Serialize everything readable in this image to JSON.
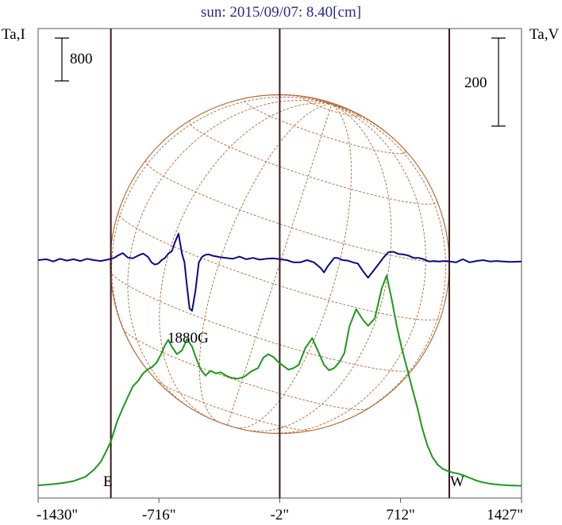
{
  "chart_data": {
    "type": "line",
    "title": "sun: 2015/09/07: 8.40[cm]",
    "left_axis_label": "Ta,I",
    "right_axis_label": "Ta,V",
    "left_scale_label": "800",
    "right_scale_label": "200",
    "x_tick_labels": [
      "-1430\"",
      "-716\"",
      "-2\"",
      "712\"",
      "1427\""
    ],
    "x_ticks": [
      -1430,
      -716,
      -2,
      712,
      1427
    ],
    "xlim": [
      -1430,
      1427
    ],
    "limb_markers": [
      {
        "label": "E",
        "x": -1000
      },
      {
        "label": "W",
        "x": 1000
      }
    ],
    "center_marker": {
      "x": -2
    },
    "annotation": {
      "text": "1880G",
      "x": -540
    },
    "grid": false,
    "series": [
      {
        "name": "I",
        "color": "#1a9a1a",
        "x": [
          -1430,
          -1330,
          -1280,
          -1220,
          -1150,
          -1100,
          -1060,
          -1030,
          -1000,
          -980,
          -960,
          -930,
          -900,
          -870,
          -840,
          -810,
          -780,
          -760,
          -730,
          -700,
          -680,
          -660,
          -640,
          -610,
          -580,
          -550,
          -520,
          -500,
          -470,
          -440,
          -410,
          -380,
          -350,
          -320,
          -290,
          -250,
          -210,
          -170,
          -130,
          -100,
          -70,
          -40,
          -10,
          20,
          50,
          80,
          110,
          150,
          190,
          230,
          260,
          290,
          320,
          350,
          380,
          410,
          450,
          490,
          520,
          560,
          600,
          630,
          660,
          690,
          720,
          750,
          780,
          810,
          840,
          870,
          900,
          930,
          960,
          990,
          1020,
          1050,
          1080,
          1120,
          1160,
          1200,
          1250,
          1300,
          1350,
          1427
        ],
        "y": [
          30,
          55,
          75,
          110,
          190,
          320,
          470,
          650,
          850,
          1050,
          1250,
          1470,
          1680,
          1880,
          1980,
          2120,
          2200,
          2230,
          2320,
          2500,
          2650,
          2750,
          2620,
          2480,
          2550,
          2760,
          2620,
          2440,
          2200,
          2080,
          2170,
          2120,
          2140,
          2080,
          2040,
          2020,
          2060,
          2160,
          2220,
          2410,
          2480,
          2430,
          2330,
          2260,
          2190,
          2220,
          2280,
          2600,
          2780,
          2500,
          2280,
          2180,
          2220,
          2330,
          2500,
          3000,
          3320,
          3120,
          3010,
          3150,
          3700,
          3950,
          3500,
          3000,
          2580,
          2220,
          1850,
          1500,
          1100,
          780,
          560,
          420,
          340,
          300,
          270,
          250,
          220,
          170,
          120,
          85,
          55,
          40,
          30,
          20
        ]
      },
      {
        "name": "V",
        "color": "#0a0a8a",
        "x": [
          -1430,
          -1380,
          -1340,
          -1300,
          -1260,
          -1220,
          -1180,
          -1140,
          -1100,
          -1060,
          -1020,
          -980,
          -960,
          -930,
          -900,
          -870,
          -840,
          -810,
          -780,
          -760,
          -740,
          -720,
          -700,
          -680,
          -660,
          -640,
          -620,
          -600,
          -580,
          -565,
          -550,
          -535,
          -520,
          -500,
          -480,
          -460,
          -440,
          -420,
          -400,
          -360,
          -320,
          -280,
          -240,
          -200,
          -160,
          -120,
          -80,
          -40,
          0,
          40,
          80,
          120,
          160,
          200,
          240,
          260,
          280,
          300,
          320,
          340,
          370,
          400,
          430,
          460,
          490,
          520,
          550,
          580,
          610,
          640,
          670,
          700,
          730,
          760,
          790,
          820,
          850,
          880,
          910,
          940,
          970,
          1000,
          1040,
          1080,
          1120,
          1160,
          1200,
          1240,
          1280,
          1320,
          1360,
          1427
        ],
        "y": [
          0,
          2,
          -3,
          3,
          -1,
          2,
          -2,
          3,
          0,
          -2,
          1,
          5,
          10,
          16,
          6,
          4,
          10,
          15,
          7,
          -5,
          -10,
          -8,
          0,
          5,
          15,
          20,
          42,
          60,
          15,
          -5,
          -60,
          -110,
          -115,
          -70,
          -5,
          8,
          12,
          13,
          10,
          7,
          5,
          3,
          8,
          2,
          5,
          1,
          3,
          4,
          2,
          0,
          -5,
          -5,
          0,
          -5,
          -18,
          -28,
          -15,
          -5,
          5,
          5,
          0,
          -1,
          -5,
          -8,
          -25,
          -40,
          -25,
          -10,
          5,
          18,
          19,
          14,
          13,
          10,
          5,
          5,
          2,
          -3,
          -2,
          -3,
          -2,
          -3,
          -5,
          2,
          -5,
          -2,
          0,
          -3,
          -2,
          -3,
          -4,
          -3
        ]
      }
    ]
  }
}
